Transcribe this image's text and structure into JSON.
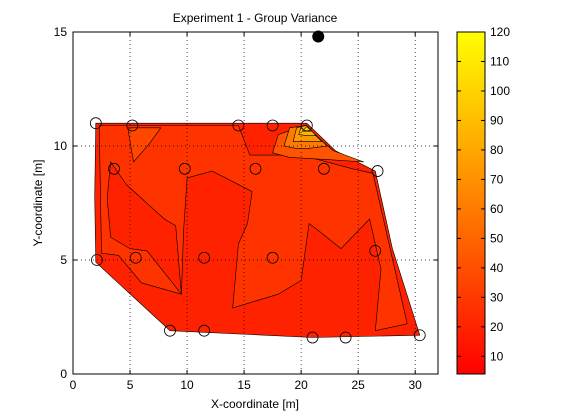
{
  "chart_data": {
    "type": "contour",
    "title": "Experiment 1 - Group Variance",
    "xlabel": "X-coordinate [m]",
    "ylabel": "Y-coordinate [m]",
    "xlim": [
      0,
      32
    ],
    "ylim": [
      0,
      15
    ],
    "xticks": [
      0,
      5,
      10,
      15,
      20,
      25,
      30
    ],
    "yticks": [
      0,
      5,
      10,
      15
    ],
    "grid": true,
    "colormap": "autumn",
    "colorbar": {
      "range": [
        4,
        120
      ],
      "ticks": [
        10,
        20,
        30,
        40,
        50,
        60,
        70,
        80,
        90,
        100,
        110,
        120
      ],
      "colors": [
        "#ff0000",
        "#ffff00"
      ]
    },
    "outline": [
      [
        2,
        11
      ],
      [
        20.5,
        11
      ],
      [
        23,
        9.8
      ],
      [
        26.5,
        8.9
      ],
      [
        28,
        5.5
      ],
      [
        30.4,
        1.7
      ],
      [
        21,
        1.6
      ],
      [
        8.5,
        1.9
      ],
      [
        2,
        4.9
      ],
      [
        1.9,
        7.8
      ]
    ],
    "regions": [
      {
        "level": 16,
        "color": "#ff2200",
        "polygon": [
          [
            2,
            11
          ],
          [
            20.5,
            11
          ],
          [
            23,
            9.8
          ],
          [
            26.5,
            8.9
          ],
          [
            28,
            5.5
          ],
          [
            30.4,
            1.7
          ],
          [
            21,
            1.6
          ],
          [
            8.5,
            1.9
          ],
          [
            2,
            4.9
          ],
          [
            1.9,
            7.8
          ]
        ]
      },
      {
        "level": 24,
        "color": "#ff3300",
        "polygon": [
          [
            2.3,
            10.9
          ],
          [
            14.5,
            10.9
          ],
          [
            15.5,
            9.6
          ],
          [
            20,
            9.6
          ],
          [
            24.5,
            9
          ],
          [
            26.3,
            8.8
          ],
          [
            27.8,
            5.5
          ],
          [
            29.3,
            2.2
          ],
          [
            26.5,
            1.9
          ],
          [
            27,
            4.6
          ],
          [
            26,
            6.8
          ],
          [
            23.5,
            5.5
          ],
          [
            21.5,
            6.3
          ],
          [
            20.7,
            6.6
          ],
          [
            20,
            4.1
          ],
          [
            18,
            3.5
          ],
          [
            14,
            2.9
          ],
          [
            14.5,
            5.7
          ],
          [
            15.3,
            6.6
          ],
          [
            15.7,
            8
          ],
          [
            12.2,
            8.9
          ],
          [
            10,
            8.6
          ],
          [
            9.7,
            6.3
          ],
          [
            9.5,
            3.5
          ],
          [
            9,
            6.5
          ],
          [
            8,
            6.8
          ],
          [
            4.7,
            8.3
          ],
          [
            3.3,
            9.3
          ],
          [
            3,
            7.7
          ],
          [
            3.3,
            6
          ],
          [
            5,
            5.5
          ],
          [
            6.5,
            5.4
          ],
          [
            9.5,
            3.5
          ],
          [
            6,
            4
          ],
          [
            4,
            5.2
          ],
          [
            2.5,
            5.3
          ]
        ]
      },
      {
        "level": 32,
        "color": "#ff4700",
        "polygon": [
          [
            4.8,
            10.8
          ],
          [
            7.7,
            10.8
          ],
          [
            6.7,
            10.1
          ],
          [
            5.3,
            9.3
          ]
        ]
      },
      {
        "level": 40,
        "color": "#ff5500",
        "polygon": [
          [
            17.5,
            9.7
          ],
          [
            18,
            10.5
          ],
          [
            20.3,
            10.9
          ],
          [
            22.8,
            9.8
          ],
          [
            25.5,
            9.3
          ],
          [
            22.5,
            9.4
          ],
          [
            19,
            9.5
          ]
        ]
      },
      {
        "level": 55,
        "color": "#ff7a00",
        "polygon": [
          [
            18.5,
            10
          ],
          [
            19,
            10.8
          ],
          [
            20.4,
            10.9
          ],
          [
            22.3,
            10
          ],
          [
            20.7,
            9.9
          ],
          [
            19.5,
            9.9
          ]
        ]
      },
      {
        "level": 70,
        "color": "#ff9800",
        "polygon": [
          [
            19.3,
            10.2
          ],
          [
            19.6,
            10.8
          ],
          [
            20.4,
            10.9
          ],
          [
            21.8,
            10.2
          ],
          [
            20.5,
            10.2
          ]
        ]
      },
      {
        "level": 85,
        "color": "#ffb600",
        "polygon": [
          [
            19.8,
            10.5
          ],
          [
            20,
            10.85
          ],
          [
            20.5,
            10.9
          ],
          [
            21.3,
            10.45
          ],
          [
            20.6,
            10.45
          ]
        ]
      },
      {
        "level": 100,
        "color": "#ffd400",
        "polygon": [
          [
            20.1,
            10.65
          ],
          [
            20.5,
            10.85
          ],
          [
            20.9,
            10.65
          ]
        ]
      }
    ],
    "sample_points": [
      [
        2,
        11
      ],
      [
        5.2,
        10.9
      ],
      [
        14.5,
        10.9
      ],
      [
        17.5,
        10.9
      ],
      [
        20.5,
        10.9
      ],
      [
        3.6,
        9
      ],
      [
        9.8,
        9
      ],
      [
        16,
        9
      ],
      [
        22,
        9
      ],
      [
        26.7,
        8.9
      ],
      [
        2.1,
        5
      ],
      [
        5.5,
        5.1
      ],
      [
        11.5,
        5.1
      ],
      [
        17.5,
        5.1
      ],
      [
        26.5,
        5.4
      ],
      [
        8.5,
        1.9
      ],
      [
        11.5,
        1.9
      ],
      [
        21,
        1.6
      ],
      [
        23.9,
        1.6
      ],
      [
        30.4,
        1.7
      ]
    ],
    "marker_point": [
      21.5,
      14.8
    ]
  },
  "colors": {
    "background": "#ffffff",
    "axis": "#000000",
    "region_edge": "#000000"
  }
}
